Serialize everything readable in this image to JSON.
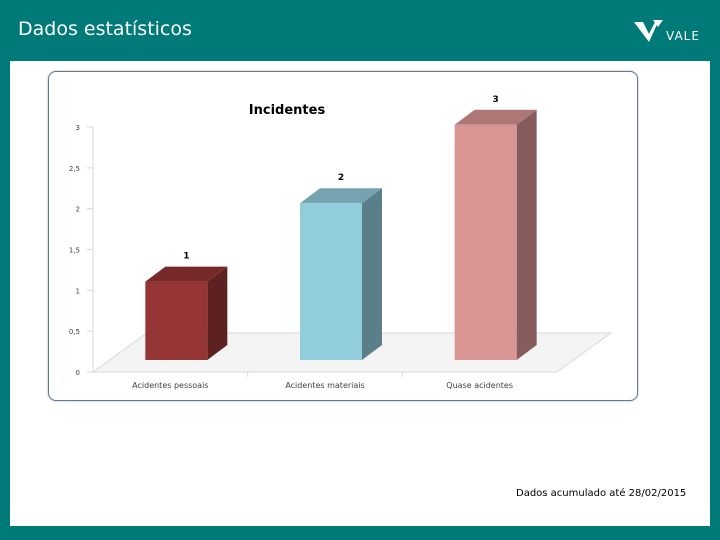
{
  "slide": {
    "title": "Dados estatísticos",
    "footnote": "Dados acumulado até 28/02/2015"
  },
  "logo": {
    "text": "VALE"
  },
  "chart_data": {
    "type": "bar",
    "style": "3d",
    "title": "Incidentes",
    "categories": [
      "Acidentes pessoais",
      "Acidentes materiais",
      "Quase acidentes"
    ],
    "values": [
      1,
      2,
      3
    ],
    "data_labels": [
      "1",
      "2",
      "3"
    ],
    "colors": [
      "#963535",
      "#92cddc",
      "#d99594"
    ],
    "ylim": [
      0,
      3
    ],
    "yticks": [
      0,
      0.5,
      1,
      1.5,
      2,
      2.5,
      3
    ],
    "ytick_labels": [
      "0",
      "0,5",
      "1",
      "1,5",
      "2",
      "2,5",
      "3"
    ],
    "grid": false,
    "legend": "none"
  }
}
